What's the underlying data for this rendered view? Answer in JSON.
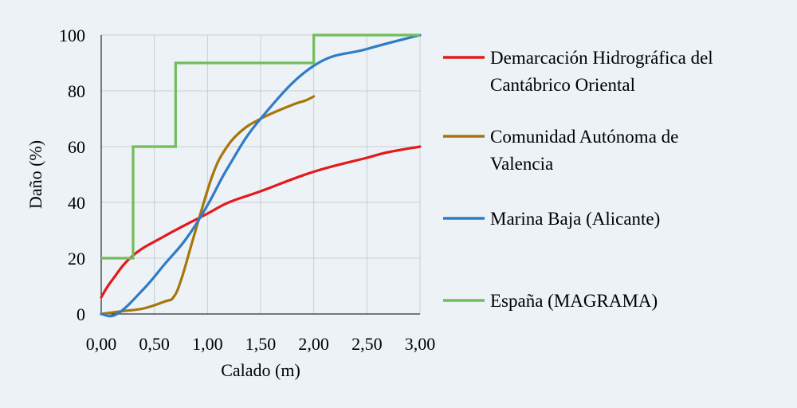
{
  "colors": {
    "background": "#edf2f7",
    "red": "#e31a1c",
    "gold": "#a7760b",
    "blue": "#2f7cc6",
    "green": "#72bd59"
  },
  "chart_data": {
    "type": "line",
    "xlabel": "Calado (m)",
    "ylabel": "Daño (%)",
    "xlim": [
      0,
      3
    ],
    "ylim": [
      0,
      100
    ],
    "x_ticks": [
      "0,00",
      "0,50",
      "1,00",
      "1,50",
      "2,00",
      "2,50",
      "3,00"
    ],
    "y_ticks": [
      "0",
      "20",
      "40",
      "60",
      "80",
      "100"
    ],
    "grid": true,
    "legend_position": "right",
    "series": [
      {
        "name": "Demarcación Hidrográfica del Cantábrico Oriental",
        "legend_lines": [
          "Demarcación Hidrográfica del",
          "Cantábrico Oriental"
        ],
        "color": "#e31a1c",
        "step": false,
        "x": [
          0,
          0.1,
          0.3,
          0.6,
          1.0,
          1.2,
          1.5,
          2.0,
          2.5,
          2.7,
          3.0
        ],
        "y": [
          6,
          12,
          21,
          28,
          36,
          40,
          44,
          51,
          56,
          58,
          60
        ]
      },
      {
        "name": "Comunidad Autónoma de Valencia",
        "legend_lines": [
          "Comunidad Autónoma de",
          "Valencia"
        ],
        "color": "#a7760b",
        "step": false,
        "x": [
          0,
          0.2,
          0.4,
          0.6,
          0.68,
          0.75,
          0.85,
          0.95,
          1.05,
          1.15,
          1.3,
          1.5,
          1.8,
          1.92,
          2.0
        ],
        "y": [
          0,
          1,
          2,
          4.5,
          6,
          12,
          25,
          38,
          50,
          58,
          65,
          70,
          75,
          76.5,
          78
        ]
      },
      {
        "name": "Marina Baja (Alicante)",
        "legend_lines": [
          "Marina Baja (Alicante)"
        ],
        "color": "#2f7cc6",
        "step": false,
        "x": [
          0,
          0.15,
          0.4,
          0.6,
          0.8,
          1.0,
          1.2,
          1.5,
          2.0,
          2.5,
          3.0
        ],
        "y": [
          0,
          0,
          9,
          18,
          27,
          39,
          53,
          70,
          89,
          95,
          100
        ]
      },
      {
        "name": "España (MAGRAMA)",
        "legend_lines": [
          "España (MAGRAMA)"
        ],
        "color": "#72bd59",
        "step": true,
        "x": [
          0,
          0.3,
          0.3,
          0.7,
          0.7,
          2.0,
          2.0,
          3.0
        ],
        "y": [
          20,
          20,
          60,
          60,
          90,
          90,
          100,
          100
        ]
      }
    ]
  }
}
